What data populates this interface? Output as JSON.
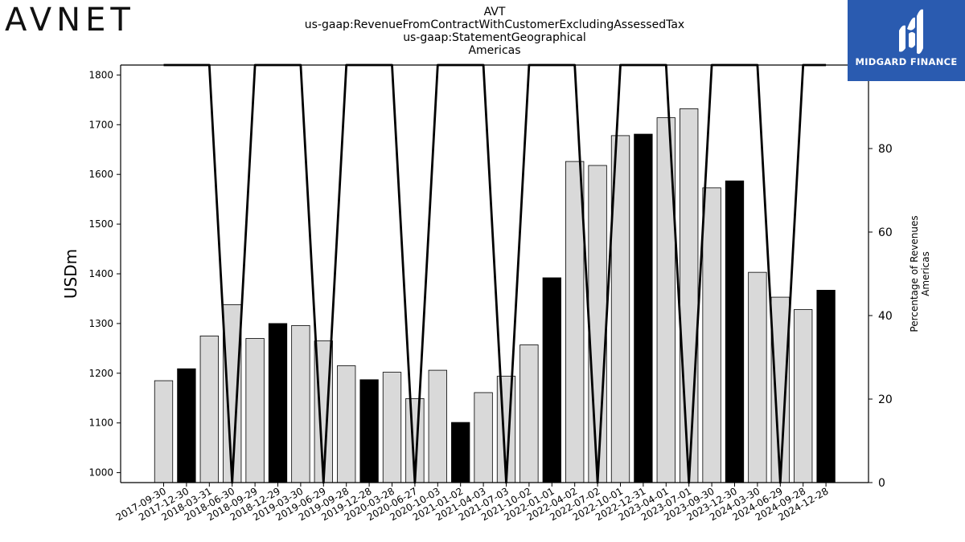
{
  "header": {
    "logo_text": "AVNET",
    "title_lines": [
      "AVT",
      "us-gaap:RevenueFromContractWithCustomerExcludingAssessedTax",
      "us-gaap:StatementGeographical",
      "Americas"
    ]
  },
  "brand": {
    "name": "MIDGARD FINANCE"
  },
  "colors": {
    "highlight_bar": "#000000",
    "regular_bar": "#d9d9d9",
    "line": "#000000",
    "brand_bg": "#2a5bb0"
  },
  "chart_data": {
    "type": "bar",
    "ylabel": "USDm",
    "y2label_lines": [
      "Percentage of Revenues",
      "Americas"
    ],
    "ylim": [
      980,
      1820
    ],
    "y2lim": [
      0,
      100
    ],
    "yticks": [
      1000,
      1100,
      1200,
      1300,
      1400,
      1500,
      1600,
      1700,
      1800
    ],
    "y2ticks": [
      0,
      20,
      40,
      60,
      80,
      100
    ],
    "categories": [
      "2017-09-30",
      "2017-12-30",
      "2018-03-31",
      "2018-06-30",
      "2018-09-29",
      "2018-12-29",
      "2019-03-30",
      "2019-06-29",
      "2019-09-28",
      "2019-12-28",
      "2020-03-28",
      "2020-06-27",
      "2020-10-03",
      "2021-01-02",
      "2021-04-03",
      "2021-07-03",
      "2021-10-02",
      "2022-01-01",
      "2022-04-02",
      "2022-07-02",
      "2022-10-01",
      "2022-12-31",
      "2023-04-01",
      "2023-07-01",
      "2023-09-30",
      "2023-12-30",
      "2024-03-30",
      "2024-06-29",
      "2024-09-28",
      "2024-12-28"
    ],
    "series": [
      {
        "type": "bar",
        "values": [
          1185,
          1209,
          1275,
          1338,
          1270,
          1300,
          1296,
          1265,
          1215,
          1187,
          1202,
          1149,
          1206,
          1101,
          1161,
          1194,
          1257,
          1392,
          1626,
          1618,
          1678,
          1681,
          1714,
          1732,
          1573,
          1587,
          1403,
          1353,
          1328,
          1367
        ],
        "highlighted": [
          false,
          true,
          false,
          false,
          false,
          true,
          false,
          false,
          false,
          true,
          false,
          false,
          false,
          true,
          false,
          false,
          false,
          true,
          false,
          false,
          false,
          true,
          false,
          false,
          false,
          true,
          false,
          false,
          false,
          true
        ]
      },
      {
        "type": "line",
        "axis": "right",
        "values": [
          100,
          100,
          100,
          0,
          100,
          100,
          100,
          0,
          100,
          100,
          100,
          0,
          100,
          100,
          100,
          0,
          100,
          100,
          100,
          0,
          100,
          100,
          100,
          0,
          100,
          100,
          100,
          0,
          100,
          100
        ]
      }
    ]
  }
}
